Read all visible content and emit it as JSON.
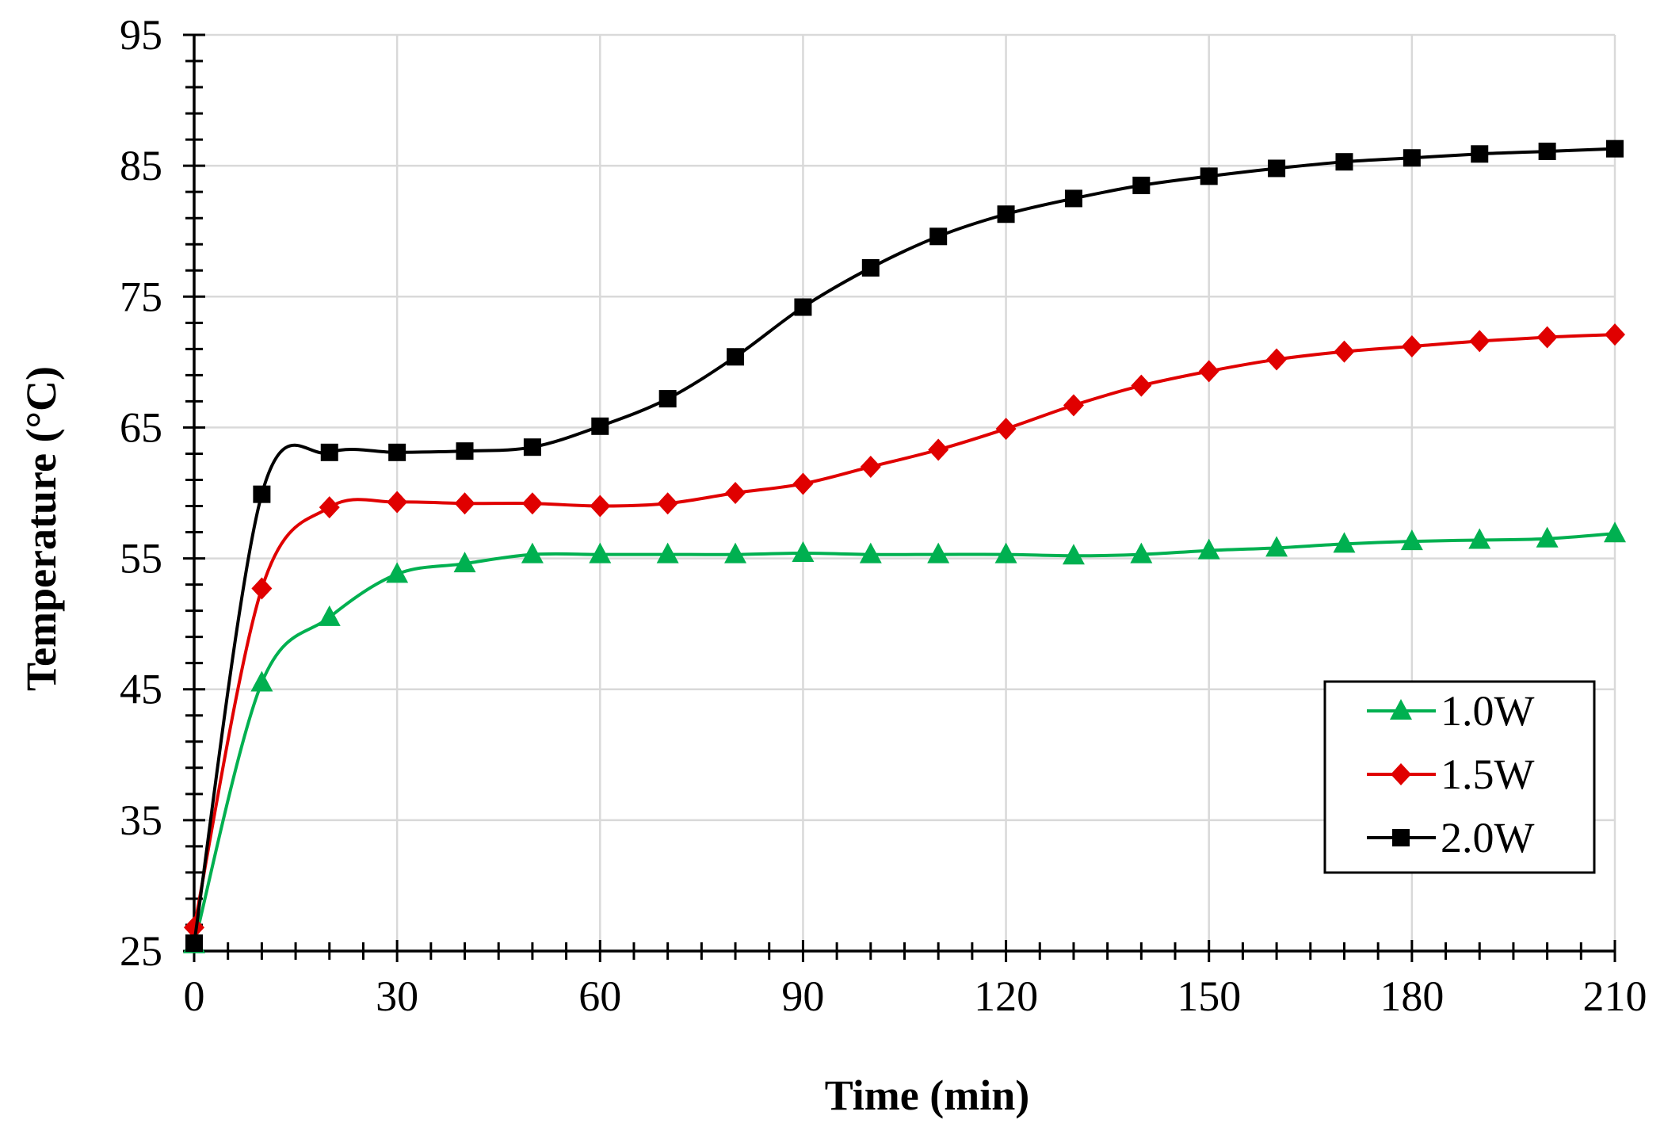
{
  "chart_data": {
    "type": "line",
    "xlabel": "Time (min)",
    "ylabel": "Temperature (°C)",
    "xlim": [
      0,
      210
    ],
    "ylim": [
      25,
      95
    ],
    "x_ticks": [
      "0",
      "30",
      "60",
      "90",
      "120",
      "150",
      "180",
      "210"
    ],
    "y_ticks": [
      "25",
      "35",
      "45",
      "55",
      "65",
      "75",
      "85",
      "95"
    ],
    "grid": true,
    "legend_position": "bottom-right",
    "x": [
      0,
      10,
      20,
      30,
      40,
      50,
      60,
      70,
      80,
      90,
      100,
      110,
      120,
      130,
      140,
      150,
      160,
      170,
      180,
      190,
      200,
      210
    ],
    "series": [
      {
        "name": "1.0W",
        "color": "#00b050",
        "marker": "triangle",
        "values": [
          25.5,
          45.5,
          50.5,
          53.8,
          54.6,
          55.3,
          55.3,
          55.3,
          55.3,
          55.4,
          55.3,
          55.3,
          55.3,
          55.2,
          55.3,
          55.6,
          55.8,
          56.1,
          56.3,
          56.4,
          56.5,
          56.9
        ]
      },
      {
        "name": "1.5W",
        "color": "#e00000",
        "marker": "diamond",
        "values": [
          26.8,
          52.7,
          58.9,
          59.3,
          59.2,
          59.2,
          59.0,
          59.2,
          60.0,
          60.7,
          62.0,
          63.3,
          64.9,
          66.7,
          68.2,
          69.3,
          70.2,
          70.8,
          71.2,
          71.6,
          71.9,
          72.1
        ]
      },
      {
        "name": "2.0W",
        "color": "#000000",
        "marker": "square",
        "values": [
          25.6,
          59.9,
          63.1,
          63.1,
          63.2,
          63.5,
          65.1,
          67.2,
          70.4,
          74.2,
          77.2,
          79.6,
          81.3,
          82.5,
          83.5,
          84.2,
          84.8,
          85.3,
          85.6,
          85.9,
          86.1,
          86.3
        ]
      }
    ]
  }
}
